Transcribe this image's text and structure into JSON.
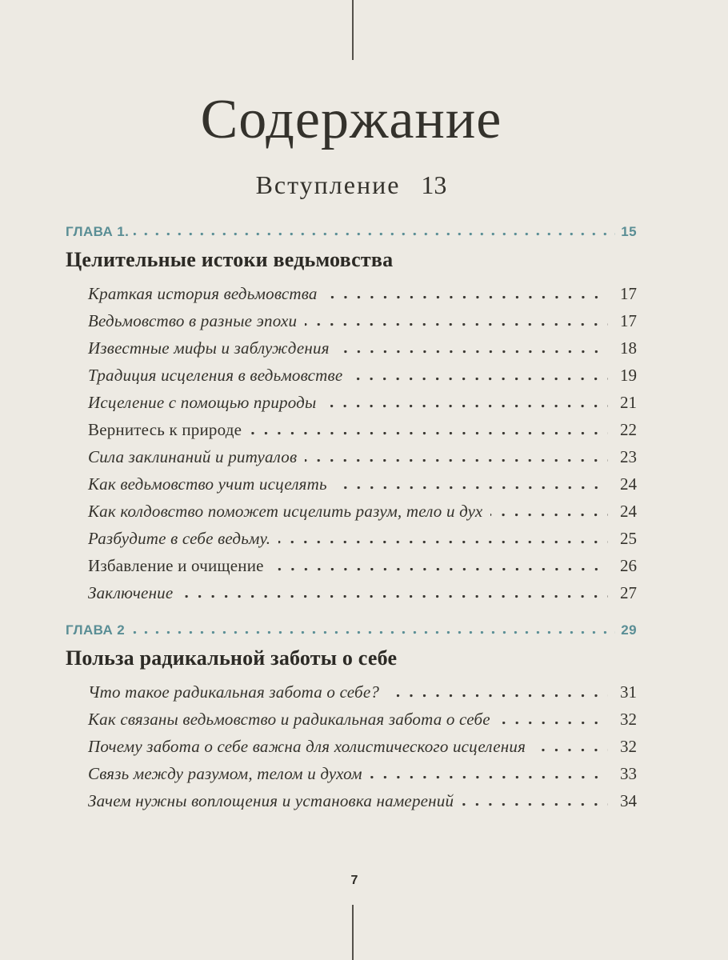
{
  "page": {
    "title": "Содержание",
    "intro": {
      "label": "Вступление",
      "page": "13"
    },
    "folio": "7"
  },
  "colors": {
    "background": "#edeae3",
    "text": "#34322c",
    "accent": "#5a8e95"
  },
  "chapters": [
    {
      "label": "ГЛАВА 1.",
      "page": "15",
      "title": "Целительные истоки ведьмовства",
      "entries": [
        {
          "label": "Краткая история ведьмовства",
          "page": "17",
          "italic": true
        },
        {
          "label": "Ведьмовство в разные эпохи",
          "page": "17",
          "italic": true
        },
        {
          "label": "Известные мифы и заблуждения",
          "page": "18",
          "italic": true
        },
        {
          "label": "Традиция исцеления в ведьмовстве",
          "page": "19",
          "italic": true
        },
        {
          "label": "Исцеление с помощью природы",
          "page": "21",
          "italic": true
        },
        {
          "label": "Вернитесь к природе",
          "page": "22",
          "italic": false
        },
        {
          "label": "Сила заклинаний и ритуалов",
          "page": "23",
          "italic": true
        },
        {
          "label": "Как ведьмовство учит исцелять",
          "page": "24",
          "italic": true
        },
        {
          "label": "Как колдовство поможет исцелить разум, тело и дух",
          "page": "24",
          "italic": true
        },
        {
          "label": "Разбудите в себе ведьму.",
          "page": "25",
          "italic": true
        },
        {
          "label": "Избавление и очищение",
          "page": "26",
          "italic": false
        },
        {
          "label": "Заключение",
          "page": "27",
          "italic": true
        }
      ]
    },
    {
      "label": "ГЛАВА 2",
      "page": "29",
      "title": "Польза радикальной заботы о себе",
      "entries": [
        {
          "label": "Что такое радикальная забота о себе?",
          "page": "31",
          "italic": true
        },
        {
          "label": "Как связаны ведьмовство и радикальная забота о себе",
          "page": "32",
          "italic": true
        },
        {
          "label": "Почему забота о себе важна для холистического исцеления",
          "page": "32",
          "italic": true
        },
        {
          "label": "Связь между разумом, телом и духом",
          "page": "33",
          "italic": true
        },
        {
          "label": "Зачем нужны воплощения и установка намерений",
          "page": "34",
          "italic": true
        }
      ]
    }
  ]
}
